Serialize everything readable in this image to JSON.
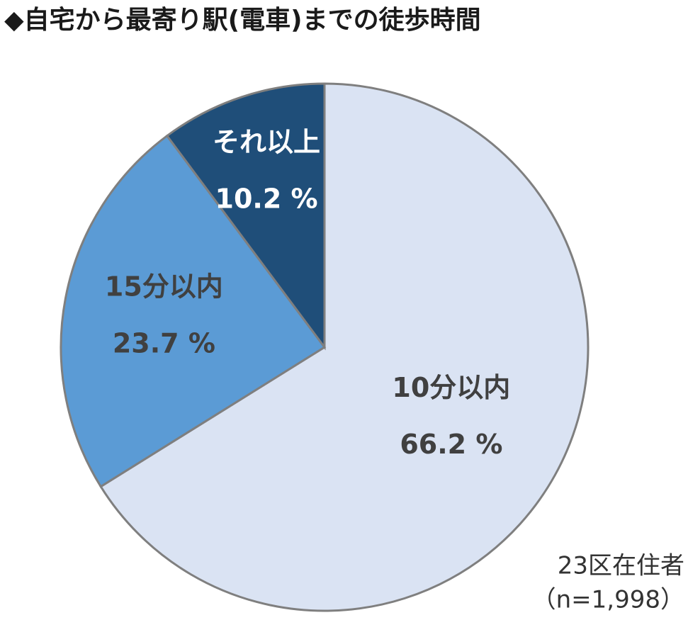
{
  "chart_data": {
    "type": "pie",
    "title": "◆自宅から最寄り駅(電車)までの徒歩時間",
    "categories": [
      "10分以内",
      "15分以内",
      "それ以上"
    ],
    "values": [
      66.2,
      23.7,
      10.2
    ],
    "value_labels": [
      "66.2 %",
      "23.7 %",
      "10.2 %"
    ],
    "colors": [
      "#dae3f3",
      "#5b9bd5",
      "#1f4e79"
    ],
    "notes": [
      "23区在住者",
      "（n=1,998）"
    ]
  }
}
